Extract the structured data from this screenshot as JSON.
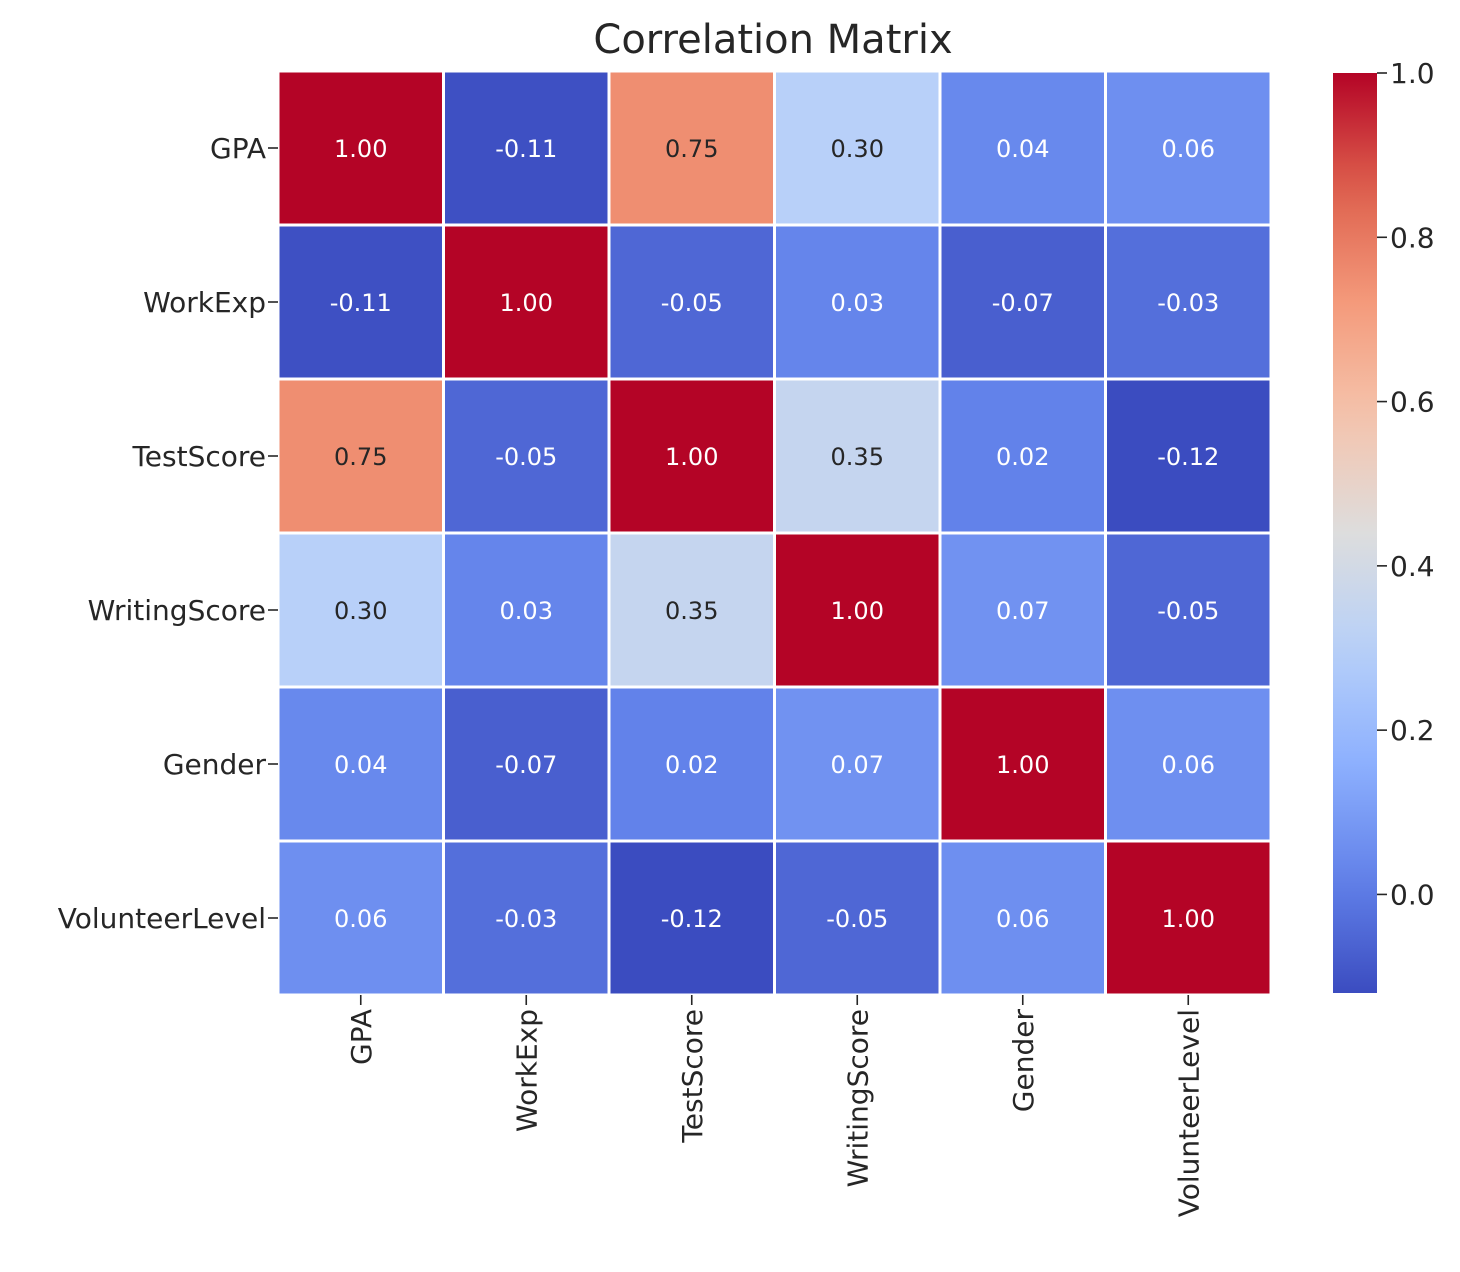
{
  "chart_data": {
    "type": "heatmap",
    "title": "Correlation Matrix",
    "xlabel": "",
    "ylabel": "",
    "x_categories": [
      "GPA",
      "WorkExp",
      "TestScore",
      "WritingScore",
      "Gender",
      "VolunteerLevel"
    ],
    "y_categories": [
      "GPA",
      "WorkExp",
      "TestScore",
      "WritingScore",
      "Gender",
      "VolunteerLevel"
    ],
    "values": [
      [
        1.0,
        -0.11,
        0.75,
        0.3,
        0.04,
        0.06
      ],
      [
        -0.11,
        1.0,
        -0.05,
        0.03,
        -0.07,
        -0.03
      ],
      [
        0.75,
        -0.05,
        1.0,
        0.35,
        0.02,
        -0.12
      ],
      [
        0.3,
        0.03,
        0.35,
        1.0,
        0.07,
        -0.05
      ],
      [
        0.04,
        -0.07,
        0.02,
        0.07,
        1.0,
        0.06
      ],
      [
        0.06,
        -0.03,
        -0.12,
        -0.05,
        0.06,
        1.0
      ]
    ],
    "value_format": "2 decimals",
    "colormap": "coolwarm",
    "color_range": [
      -0.12,
      1.0
    ],
    "colorbar": {
      "ticks": [
        0.0,
        0.2,
        0.4,
        0.6,
        0.8,
        1.0
      ],
      "tick_labels": [
        "0.0",
        "0.2",
        "0.4",
        "0.6",
        "0.8",
        "1.0"
      ],
      "placement": "right"
    },
    "grid": false,
    "cell_border_color": "#ffffff"
  }
}
